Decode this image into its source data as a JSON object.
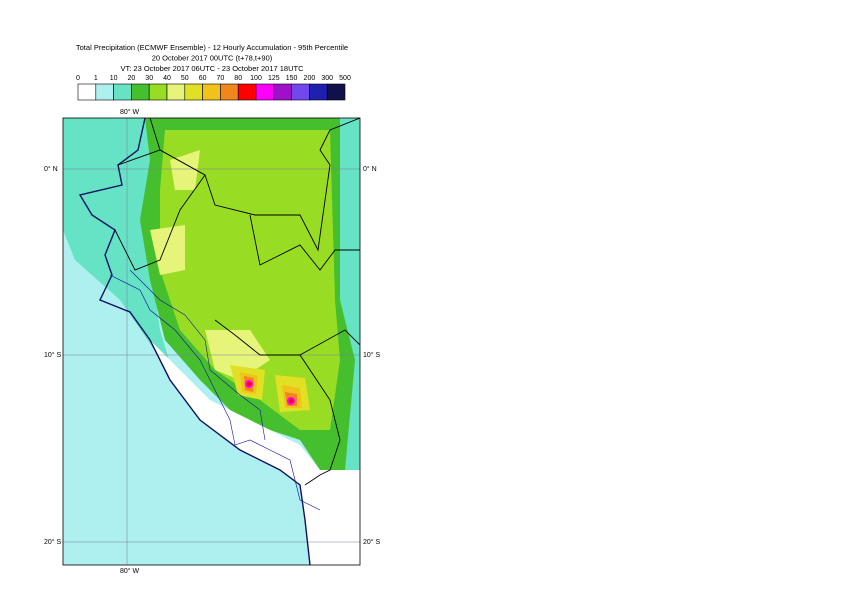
{
  "header": {
    "title_lines": [
      "Total Precipitation (ECMWF Ensemble) - 12 Hourly Accumulation - 95th Percentile",
      "20 October 2017 00UTC (t+78,t+90)",
      "VT: 23 October 2017 06UTC - 23 October 2017 18UTC"
    ]
  },
  "legend": {
    "labels": [
      0,
      1,
      10,
      20,
      30,
      40,
      50,
      60,
      70,
      80,
      100,
      125,
      150,
      200,
      300,
      500
    ],
    "colors": [
      "#ffffff",
      "#aef0f0",
      "#66e2c4",
      "#46bf2e",
      "#98dd24",
      "#e6f47a",
      "#e0e024",
      "#f2c21c",
      "#f0861c",
      "#ff0000",
      "#ff00ff",
      "#a010c8",
      "#7048ee",
      "#2020b0",
      "#10104c"
    ]
  },
  "map": {
    "lon_labels": [
      "80° W"
    ],
    "lat_labels": [
      "0° N",
      "10° S",
      "20° S"
    ]
  }
}
